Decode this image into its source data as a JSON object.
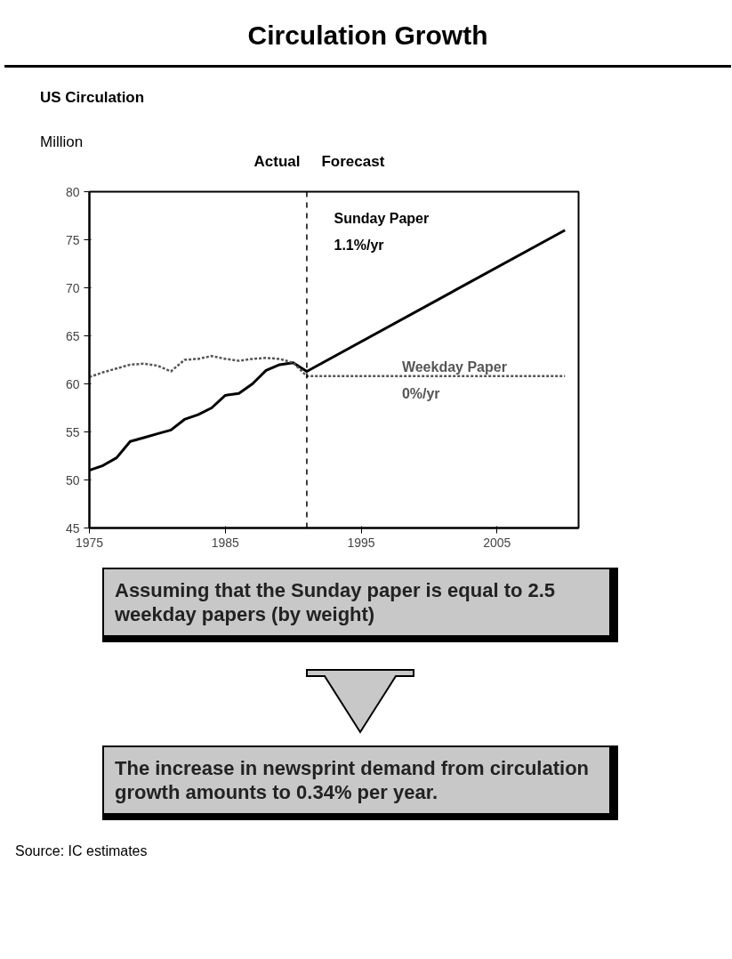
{
  "chart_data": {
    "type": "line",
    "title": "Circulation Growth",
    "subtitle": "US Circulation",
    "ylabel": "Million",
    "x": [
      1975,
      1976,
      1977,
      1978,
      1979,
      1980,
      1981,
      1982,
      1983,
      1984,
      1985,
      1986,
      1987,
      1988,
      1989,
      1990,
      1991,
      2010
    ],
    "series": [
      {
        "name": "Sunday Paper",
        "color": "#000000",
        "line_style": "solid",
        "values": [
          51.0,
          51.5,
          52.3,
          54.0,
          54.4,
          54.8,
          55.2,
          56.3,
          56.8,
          57.5,
          58.8,
          59.0,
          60.0,
          61.4,
          62.0,
          62.2,
          61.3,
          76.0
        ]
      },
      {
        "name": "Weekday Paper",
        "color": "#555555",
        "line_style": "dotted",
        "values": [
          60.7,
          61.2,
          61.6,
          62.0,
          62.1,
          61.9,
          61.3,
          62.5,
          62.6,
          62.9,
          62.6,
          62.4,
          62.6,
          62.7,
          62.6,
          62.2,
          60.8,
          60.8
        ]
      }
    ],
    "xlim": [
      1975,
      2011
    ],
    "xticks": [
      1975,
      1985,
      1995,
      2005
    ],
    "ylim": [
      45,
      80
    ],
    "yticks": [
      45,
      50,
      55,
      60,
      65,
      70,
      75,
      80
    ],
    "grid": false,
    "ref_lines": [
      {
        "axis": "x",
        "value": 1991,
        "line_style": "dashed",
        "color": "#000000"
      }
    ],
    "annotations": [
      "Actual",
      "Forecast",
      "1.1%/yr",
      "0%/yr",
      "Assuming that the Sunday paper is equal to 2.5 weekday papers (by weight)",
      "The increase in newsprint demand from circulation growth amounts to 0.34% per year.",
      "Source: IC estimates"
    ]
  }
}
